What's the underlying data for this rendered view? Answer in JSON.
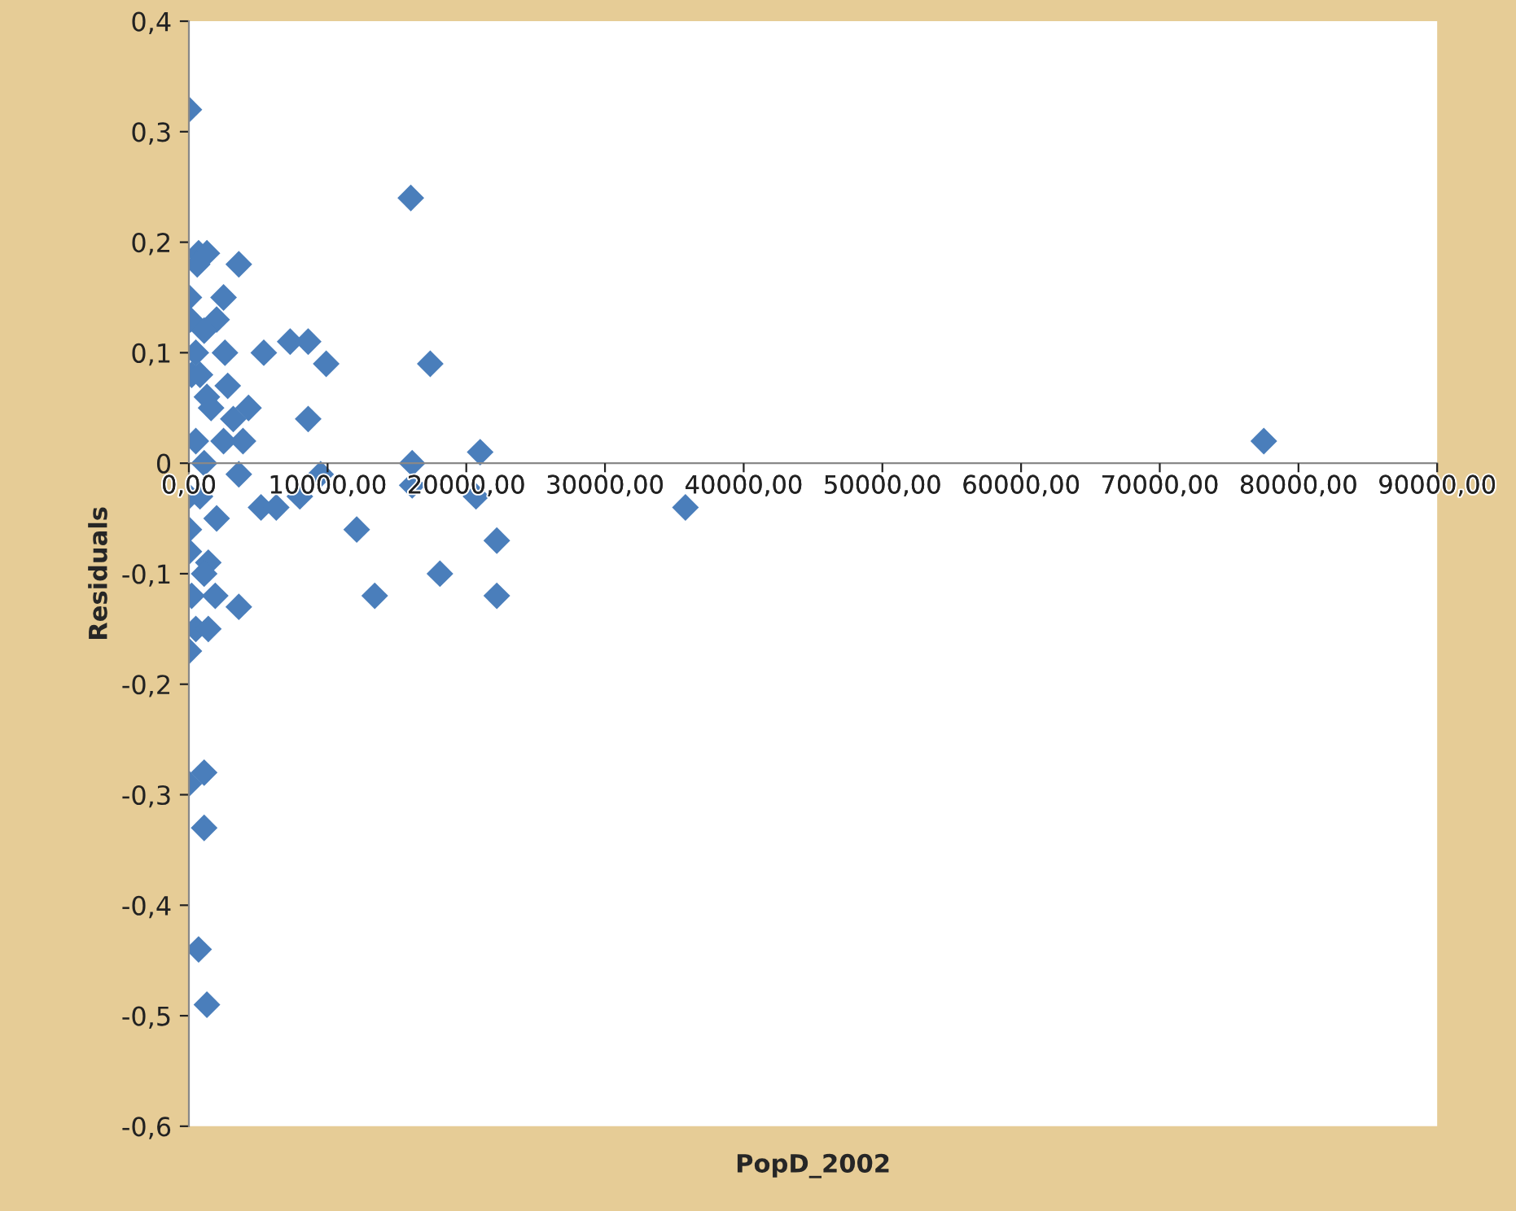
{
  "chart_data": {
    "type": "scatter",
    "xlabel": "PopD_2002",
    "ylabel": "Residuals",
    "marker": "diamond",
    "grid": false,
    "xlim": [
      0,
      90000
    ],
    "ylim": [
      -0.6,
      0.4
    ],
    "xticks": [
      {
        "value": 0,
        "label": "0,00"
      },
      {
        "value": 10000,
        "label": "10000,00"
      },
      {
        "value": 20000,
        "label": "20000,00"
      },
      {
        "value": 30000,
        "label": "30000,00"
      },
      {
        "value": 40000,
        "label": "40000,00"
      },
      {
        "value": 50000,
        "label": "50000,00"
      },
      {
        "value": 60000,
        "label": "60000,00"
      },
      {
        "value": 70000,
        "label": "70000,00"
      },
      {
        "value": 80000,
        "label": "80000,00"
      },
      {
        "value": 90000,
        "label": "90000,00"
      }
    ],
    "yticks": [
      {
        "value": -0.6,
        "label": "-0,6"
      },
      {
        "value": -0.5,
        "label": "-0,5"
      },
      {
        "value": -0.4,
        "label": "-0,4"
      },
      {
        "value": -0.3,
        "label": "-0,3"
      },
      {
        "value": -0.2,
        "label": "-0,2"
      },
      {
        "value": -0.1,
        "label": "-0,1"
      },
      0,
      {
        "value": 0.1,
        "label": "0,1"
      },
      {
        "value": 0.2,
        "label": "0,2"
      },
      {
        "value": 0.3,
        "label": "0,3"
      },
      {
        "value": 0.4,
        "label": "0,4"
      }
    ],
    "series": [
      {
        "color": "#4a7ebb",
        "x": [
          0,
          16000,
          700,
          1300,
          600,
          3600,
          2500,
          0,
          2000,
          100,
          1100,
          7300,
          8600,
          9900,
          5400,
          2600,
          17400,
          500,
          200,
          800,
          2800,
          1300,
          4300,
          1600,
          8600,
          3200,
          3900,
          500,
          2500,
          21000,
          1100,
          16100,
          3600,
          9500,
          16100,
          20700,
          8000,
          12100,
          22200,
          18100,
          13400,
          22200,
          0,
          800,
          5200,
          6300,
          2000,
          0,
          0,
          1400,
          1100,
          200,
          1900,
          3600,
          500,
          1400,
          0,
          0,
          1100,
          1100,
          700,
          1300,
          35800,
          77500
        ],
        "values": [
          0.32,
          0.24,
          0.19,
          0.19,
          0.18,
          0.18,
          0.15,
          0.15,
          0.13,
          0.13,
          0.12,
          0.11,
          0.11,
          0.09,
          0.1,
          0.1,
          0.09,
          0.1,
          0.08,
          0.08,
          0.07,
          0.06,
          0.05,
          0.05,
          0.04,
          0.04,
          0.02,
          0.02,
          0.02,
          0.01,
          0.0,
          0.0,
          -0.01,
          -0.01,
          -0.02,
          -0.03,
          -0.03,
          -0.06,
          -0.07,
          -0.1,
          -0.12,
          -0.12,
          -0.03,
          -0.03,
          -0.04,
          -0.04,
          -0.05,
          -0.06,
          -0.08,
          -0.09,
          -0.1,
          -0.12,
          -0.12,
          -0.13,
          -0.15,
          -0.15,
          -0.17,
          -0.29,
          -0.28,
          -0.33,
          -0.44,
          -0.49,
          -0.04,
          0.02
        ]
      }
    ]
  }
}
